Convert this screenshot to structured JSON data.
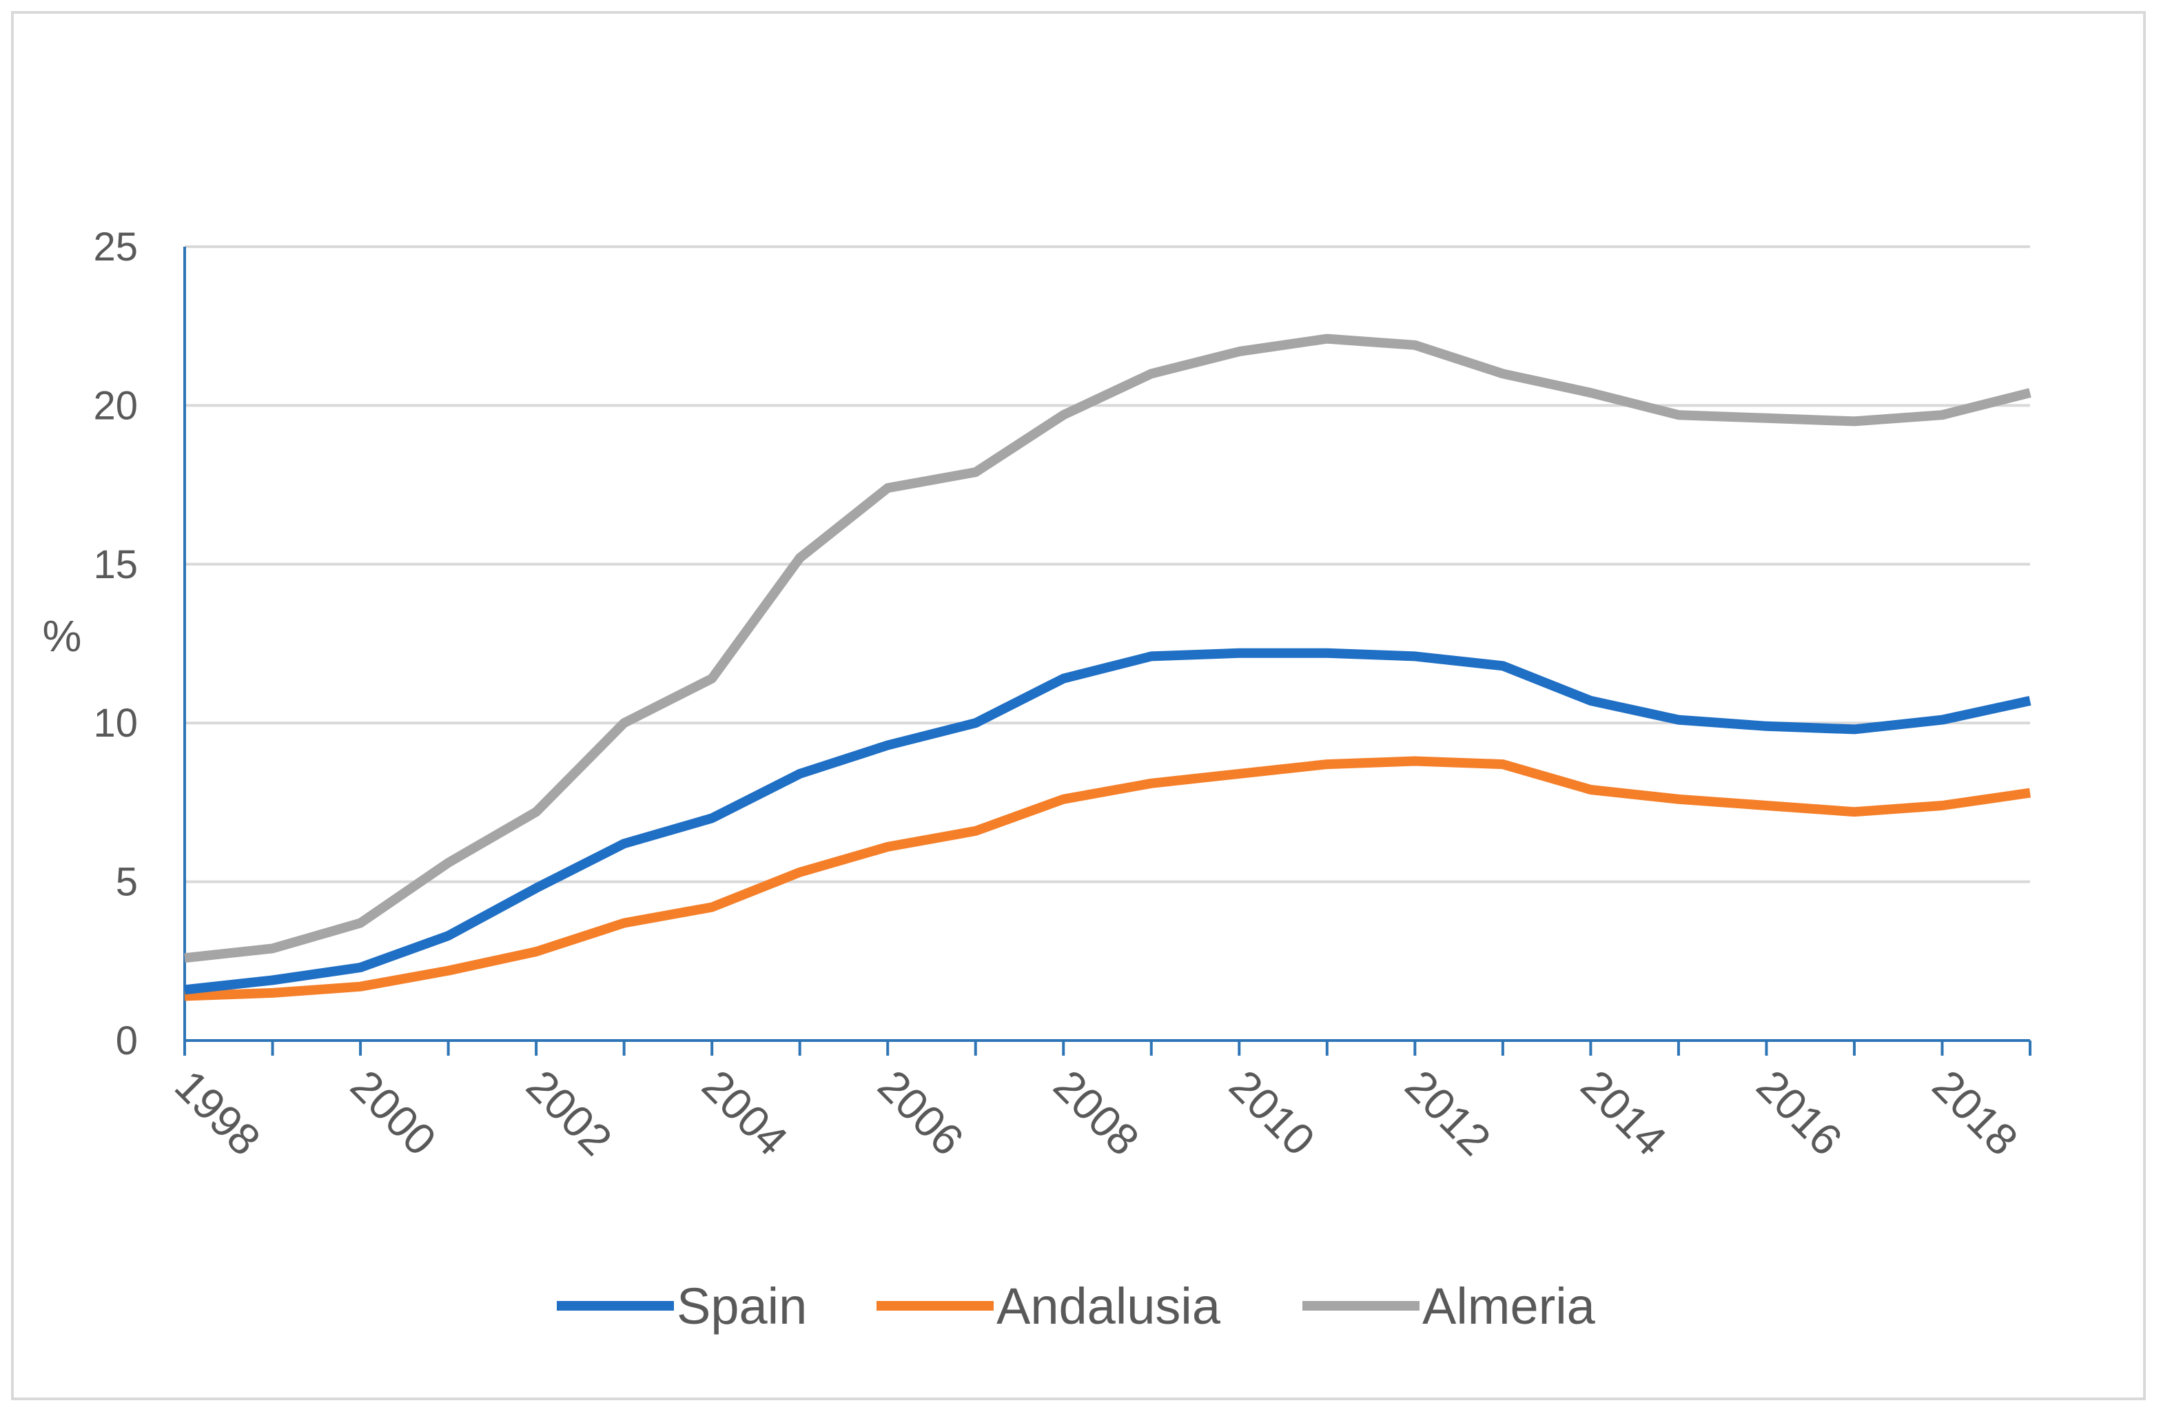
{
  "chart_data": {
    "type": "line",
    "title": "",
    "xlabel": "",
    "ylabel": "%",
    "ylim": [
      0,
      25
    ],
    "yticks": [
      0,
      5,
      10,
      15,
      20,
      25
    ],
    "x": [
      1998,
      1999,
      2000,
      2001,
      2002,
      2003,
      2004,
      2005,
      2006,
      2007,
      2008,
      2009,
      2010,
      2011,
      2012,
      2013,
      2014,
      2015,
      2016,
      2017,
      2018,
      2019
    ],
    "xtick_labels": [
      "1998",
      "2000",
      "2002",
      "2004",
      "2006",
      "2008",
      "2010",
      "2012",
      "2014",
      "2016",
      "2018"
    ],
    "grid": true,
    "legend_position": "bottom",
    "series": [
      {
        "name": "Spain",
        "color": "#1f6fc5",
        "values": [
          1.6,
          1.9,
          2.3,
          3.3,
          4.8,
          6.2,
          7.0,
          8.4,
          9.3,
          10.0,
          11.4,
          12.1,
          12.2,
          12.2,
          12.1,
          11.8,
          10.7,
          10.1,
          9.9,
          9.8,
          10.1,
          10.7
        ]
      },
      {
        "name": "Andalusia",
        "color": "#f57f29",
        "values": [
          1.4,
          1.5,
          1.7,
          2.2,
          2.8,
          3.7,
          4.2,
          5.3,
          6.1,
          6.6,
          7.6,
          8.1,
          8.4,
          8.7,
          8.8,
          8.7,
          7.9,
          7.6,
          7.4,
          7.2,
          7.4,
          7.8
        ]
      },
      {
        "name": "Almeria",
        "color": "#a5a5a5",
        "values": [
          2.6,
          2.9,
          3.7,
          5.6,
          7.2,
          10.0,
          11.4,
          15.2,
          17.4,
          17.9,
          19.7,
          21.0,
          21.7,
          22.1,
          21.9,
          21.0,
          20.4,
          19.7,
          19.6,
          19.5,
          19.7,
          20.4
        ]
      }
    ]
  }
}
